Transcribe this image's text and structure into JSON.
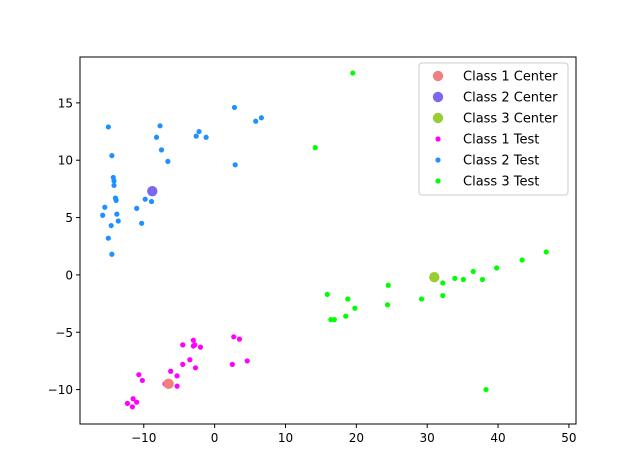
{
  "chart_data": {
    "type": "scatter",
    "xlim": [
      -19,
      51
    ],
    "ylim": [
      -13,
      19
    ],
    "x_ticks": [
      -10,
      0,
      10,
      20,
      30,
      40,
      50
    ],
    "y_ticks": [
      -10,
      -5,
      0,
      5,
      10,
      15
    ],
    "x_tick_labels": [
      "−10",
      "0",
      "10",
      "20",
      "30",
      "40",
      "50"
    ],
    "y_tick_labels": [
      "−10",
      "−5",
      "0",
      "5",
      "10",
      "15"
    ],
    "grid": false,
    "legend_position": "top-right",
    "series": [
      {
        "name": "Class 1 Test",
        "color": "#ff00ff",
        "points": [
          [
            -3,
            -5.7
          ],
          [
            -3,
            -6.2
          ],
          [
            -2,
            -6.3
          ],
          [
            -2.8,
            -6.1
          ],
          [
            -4.5,
            -6.1
          ],
          [
            -3.5,
            -7.4
          ],
          [
            -2.7,
            -8.1
          ],
          [
            -4.5,
            -7.8
          ],
          [
            -6.2,
            -8.4
          ],
          [
            -5.3,
            -8.8
          ],
          [
            -5.3,
            -9.7
          ],
          [
            -7,
            -9.5
          ],
          [
            -10.7,
            -8.7
          ],
          [
            -10.2,
            -9.2
          ],
          [
            -11.5,
            -10.8
          ],
          [
            -12.3,
            -11.2
          ],
          [
            -11.6,
            -11.5
          ],
          [
            -11,
            -11.1
          ],
          [
            2.7,
            -5.4
          ],
          [
            3.5,
            -5.6
          ],
          [
            4.6,
            -7.5
          ],
          [
            2.5,
            -7.8
          ]
        ]
      },
      {
        "name": "Class 2 Test",
        "color": "#1e90ff",
        "points": [
          [
            -15,
            12.9
          ],
          [
            -14.5,
            10.4
          ],
          [
            -14.3,
            8.5
          ],
          [
            -14.2,
            8.2
          ],
          [
            -14.2,
            7.8
          ],
          [
            -14,
            6.7
          ],
          [
            -13.9,
            6.5
          ],
          [
            -15.5,
            5.9
          ],
          [
            -15.8,
            5.2
          ],
          [
            -13.8,
            5.3
          ],
          [
            -13.6,
            4.7
          ],
          [
            -14.6,
            4.3
          ],
          [
            -15,
            3.2
          ],
          [
            -14.5,
            1.8
          ],
          [
            -11,
            5.8
          ],
          [
            -9.8,
            6.6
          ],
          [
            -8.9,
            6.4
          ],
          [
            -10.3,
            4.5
          ],
          [
            -7.7,
            13
          ],
          [
            -8.2,
            12
          ],
          [
            -7.5,
            10.9
          ],
          [
            -6.6,
            9.9
          ],
          [
            -2.2,
            12.5
          ],
          [
            -2.6,
            12.1
          ],
          [
            -1.2,
            12
          ],
          [
            2.8,
            14.6
          ],
          [
            5.8,
            13.4
          ],
          [
            6.6,
            13.7
          ],
          [
            2.9,
            9.6
          ]
        ]
      },
      {
        "name": "Class 3 Test",
        "color": "#00ff00",
        "points": [
          [
            19.5,
            17.6
          ],
          [
            14.2,
            11.1
          ],
          [
            46.8,
            2
          ],
          [
            43.4,
            1.3
          ],
          [
            39.8,
            0.6
          ],
          [
            36.5,
            0.3
          ],
          [
            33.9,
            -0.3
          ],
          [
            35.1,
            -0.4
          ],
          [
            37.8,
            -0.4
          ],
          [
            32.2,
            -0.7
          ],
          [
            24.5,
            -0.9
          ],
          [
            15.9,
            -1.7
          ],
          [
            18.8,
            -2.1
          ],
          [
            29.2,
            -2.1
          ],
          [
            32.2,
            -1.8
          ],
          [
            24.4,
            -2.6
          ],
          [
            19.8,
            -2.9
          ],
          [
            18.5,
            -3.6
          ],
          [
            16.9,
            -3.9
          ],
          [
            16.4,
            -3.9
          ],
          [
            38.3,
            -10
          ]
        ]
      }
    ],
    "centers": [
      {
        "name": "Class 1 Center",
        "color": "#f08080",
        "x": -6.5,
        "y": -9.5
      },
      {
        "name": "Class 2 Center",
        "color": "#7b68ee",
        "x": -8.8,
        "y": 7.3
      },
      {
        "name": "Class 3 Center",
        "color": "#9acd32",
        "x": 31,
        "y": -0.2
      }
    ],
    "legend": [
      {
        "label": "Class 1 Center",
        "color": "#f08080",
        "kind": "center"
      },
      {
        "label": "Class 2 Center",
        "color": "#7b68ee",
        "kind": "center"
      },
      {
        "label": "Class 3 Center",
        "color": "#9acd32",
        "kind": "center"
      },
      {
        "label": "Class 1 Test",
        "color": "#ff00ff",
        "kind": "test"
      },
      {
        "label": "Class 2 Test",
        "color": "#1e90ff",
        "kind": "test"
      },
      {
        "label": "Class 3 Test",
        "color": "#00ff00",
        "kind": "test"
      }
    ]
  }
}
